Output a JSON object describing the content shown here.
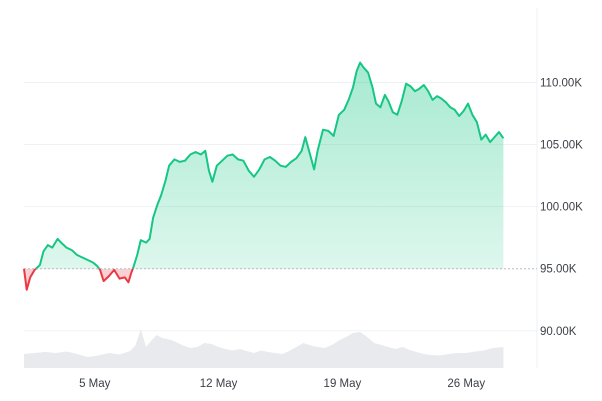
{
  "chart_data": {
    "type": "area",
    "title": "",
    "xlabel": "",
    "ylabel": "",
    "baseline": 95000,
    "ylim": [
      87000,
      116000
    ],
    "xlim": [
      0,
      29
    ],
    "y_ticks": [
      {
        "value": 110000,
        "label": "110.00K"
      },
      {
        "value": 105000,
        "label": "105.00K"
      },
      {
        "value": 100000,
        "label": "100.00K"
      },
      {
        "value": 95000,
        "label": "95.00K"
      },
      {
        "value": 90000,
        "label": "90.00K"
      }
    ],
    "x_ticks": [
      {
        "day": 4,
        "label": "5 May"
      },
      {
        "day": 11,
        "label": "12 May"
      },
      {
        "day": 18,
        "label": "19 May"
      },
      {
        "day": 25,
        "label": "26 May"
      }
    ],
    "colors": {
      "above": "#16c784",
      "below": "#ea3943",
      "volume": "#e8eaee",
      "grid": "#eff2f5",
      "baseline": "#b5bcc6"
    },
    "series": [
      {
        "values": [
          [
            0.0,
            95000
          ],
          [
            0.15,
            93300
          ],
          [
            0.35,
            94300
          ],
          [
            0.6,
            94900
          ],
          [
            0.9,
            95300
          ],
          [
            1.1,
            96400
          ],
          [
            1.35,
            96900
          ],
          [
            1.6,
            96700
          ],
          [
            1.9,
            97400
          ],
          [
            2.1,
            97100
          ],
          [
            2.4,
            96700
          ],
          [
            2.7,
            96500
          ],
          [
            3.0,
            96100
          ],
          [
            3.3,
            95900
          ],
          [
            3.6,
            95700
          ],
          [
            3.9,
            95500
          ],
          [
            4.15,
            95200
          ],
          [
            4.3,
            94900
          ],
          [
            4.5,
            94000
          ],
          [
            4.8,
            94400
          ],
          [
            5.1,
            94900
          ],
          [
            5.4,
            94200
          ],
          [
            5.7,
            94300
          ],
          [
            5.9,
            93900
          ],
          [
            6.05,
            94600
          ],
          [
            6.2,
            95200
          ],
          [
            6.4,
            96100
          ],
          [
            6.6,
            97300
          ],
          [
            6.9,
            97100
          ],
          [
            7.1,
            97400
          ],
          [
            7.3,
            99100
          ],
          [
            7.55,
            100200
          ],
          [
            7.75,
            100900
          ],
          [
            8.0,
            102100
          ],
          [
            8.2,
            103300
          ],
          [
            8.5,
            103800
          ],
          [
            8.8,
            103600
          ],
          [
            9.1,
            103700
          ],
          [
            9.4,
            104200
          ],
          [
            9.7,
            104400
          ],
          [
            10.0,
            104200
          ],
          [
            10.25,
            104500
          ],
          [
            10.45,
            102900
          ],
          [
            10.65,
            102000
          ],
          [
            10.9,
            103300
          ],
          [
            11.2,
            103700
          ],
          [
            11.5,
            104100
          ],
          [
            11.8,
            104200
          ],
          [
            12.1,
            103800
          ],
          [
            12.4,
            103700
          ],
          [
            12.7,
            102900
          ],
          [
            13.0,
            102400
          ],
          [
            13.3,
            103000
          ],
          [
            13.6,
            103800
          ],
          [
            13.9,
            104000
          ],
          [
            14.2,
            103700
          ],
          [
            14.5,
            103300
          ],
          [
            14.8,
            103200
          ],
          [
            15.1,
            103600
          ],
          [
            15.4,
            103900
          ],
          [
            15.7,
            104500
          ],
          [
            15.9,
            105600
          ],
          [
            16.15,
            104300
          ],
          [
            16.4,
            103000
          ],
          [
            16.6,
            104500
          ],
          [
            16.9,
            106200
          ],
          [
            17.2,
            106100
          ],
          [
            17.5,
            105700
          ],
          [
            17.8,
            107400
          ],
          [
            18.1,
            107800
          ],
          [
            18.35,
            108600
          ],
          [
            18.6,
            109600
          ],
          [
            18.8,
            110900
          ],
          [
            19.0,
            111600
          ],
          [
            19.2,
            111200
          ],
          [
            19.45,
            110800
          ],
          [
            19.7,
            109600
          ],
          [
            19.9,
            108300
          ],
          [
            20.15,
            108000
          ],
          [
            20.4,
            109000
          ],
          [
            20.6,
            108500
          ],
          [
            20.85,
            107600
          ],
          [
            21.1,
            107400
          ],
          [
            21.35,
            108500
          ],
          [
            21.6,
            109900
          ],
          [
            21.85,
            109700
          ],
          [
            22.1,
            109300
          ],
          [
            22.35,
            109500
          ],
          [
            22.6,
            109800
          ],
          [
            22.85,
            109300
          ],
          [
            23.1,
            108600
          ],
          [
            23.35,
            108900
          ],
          [
            23.6,
            108700
          ],
          [
            23.85,
            108400
          ],
          [
            24.1,
            108000
          ],
          [
            24.35,
            107800
          ],
          [
            24.6,
            107300
          ],
          [
            24.85,
            107700
          ],
          [
            25.1,
            108300
          ],
          [
            25.35,
            107400
          ],
          [
            25.6,
            106800
          ],
          [
            25.85,
            105400
          ],
          [
            26.1,
            105800
          ],
          [
            26.35,
            105200
          ],
          [
            26.6,
            105600
          ],
          [
            26.85,
            106000
          ],
          [
            27.1,
            105500
          ]
        ]
      }
    ],
    "volume": [
      [
        0.0,
        0.28
      ],
      [
        0.6,
        0.3
      ],
      [
        1.2,
        0.32
      ],
      [
        1.8,
        0.3
      ],
      [
        2.4,
        0.33
      ],
      [
        3.0,
        0.28
      ],
      [
        3.6,
        0.22
      ],
      [
        4.2,
        0.25
      ],
      [
        4.8,
        0.3
      ],
      [
        5.4,
        0.27
      ],
      [
        6.0,
        0.34
      ],
      [
        6.3,
        0.45
      ],
      [
        6.6,
        0.78
      ],
      [
        6.9,
        0.42
      ],
      [
        7.2,
        0.55
      ],
      [
        7.5,
        0.66
      ],
      [
        7.8,
        0.6
      ],
      [
        8.1,
        0.58
      ],
      [
        8.4,
        0.55
      ],
      [
        8.7,
        0.5
      ],
      [
        9.0,
        0.45
      ],
      [
        9.4,
        0.4
      ],
      [
        9.8,
        0.42
      ],
      [
        10.2,
        0.5
      ],
      [
        10.6,
        0.48
      ],
      [
        11.0,
        0.42
      ],
      [
        11.4,
        0.38
      ],
      [
        11.8,
        0.35
      ],
      [
        12.2,
        0.38
      ],
      [
        12.6,
        0.34
      ],
      [
        13.0,
        0.3
      ],
      [
        13.4,
        0.35
      ],
      [
        13.8,
        0.32
      ],
      [
        14.2,
        0.3
      ],
      [
        14.6,
        0.28
      ],
      [
        15.0,
        0.34
      ],
      [
        15.4,
        0.42
      ],
      [
        15.8,
        0.5
      ],
      [
        16.2,
        0.45
      ],
      [
        16.6,
        0.42
      ],
      [
        17.0,
        0.4
      ],
      [
        17.4,
        0.46
      ],
      [
        17.8,
        0.55
      ],
      [
        18.2,
        0.62
      ],
      [
        18.6,
        0.7
      ],
      [
        19.0,
        0.72
      ],
      [
        19.4,
        0.62
      ],
      [
        19.8,
        0.5
      ],
      [
        20.2,
        0.46
      ],
      [
        20.6,
        0.42
      ],
      [
        21.0,
        0.38
      ],
      [
        21.4,
        0.42
      ],
      [
        21.8,
        0.36
      ],
      [
        22.2,
        0.32
      ],
      [
        22.6,
        0.28
      ],
      [
        23.0,
        0.26
      ],
      [
        23.5,
        0.25
      ],
      [
        24.0,
        0.28
      ],
      [
        24.5,
        0.3
      ],
      [
        25.0,
        0.3
      ],
      [
        25.5,
        0.33
      ],
      [
        26.0,
        0.35
      ],
      [
        26.5,
        0.4
      ],
      [
        27.1,
        0.42
      ]
    ]
  }
}
